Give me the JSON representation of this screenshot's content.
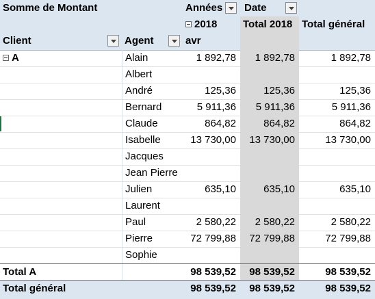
{
  "header": {
    "measure": "Somme de Montant",
    "columns_field": "Années",
    "date_field": "Date",
    "year": "2018",
    "year_total": "Total 2018",
    "grand_total": "Total général",
    "client_field": "Client",
    "agent_field": "Agent",
    "month": "avr"
  },
  "client_group": "A",
  "rows": [
    {
      "agent": "Alain",
      "avr": "1 892,78",
      "total2018": "1 892,78",
      "total": "1 892,78"
    },
    {
      "agent": "Albert",
      "avr": "",
      "total2018": "",
      "total": ""
    },
    {
      "agent": "André",
      "avr": "125,36",
      "total2018": "125,36",
      "total": "125,36"
    },
    {
      "agent": "Bernard",
      "avr": "5 911,36",
      "total2018": "5 911,36",
      "total": "5 911,36"
    },
    {
      "agent": "Claude",
      "avr": "864,82",
      "total2018": "864,82",
      "total": "864,82"
    },
    {
      "agent": "Isabelle",
      "avr": "13 730,00",
      "total2018": "13 730,00",
      "total": "13 730,00"
    },
    {
      "agent": "Jacques",
      "avr": "",
      "total2018": "",
      "total": ""
    },
    {
      "agent": "Jean Pierre",
      "avr": "",
      "total2018": "",
      "total": ""
    },
    {
      "agent": "Julien",
      "avr": "635,10",
      "total2018": "635,10",
      "total": "635,10"
    },
    {
      "agent": "Laurent",
      "avr": "",
      "total2018": "",
      "total": ""
    },
    {
      "agent": "Paul",
      "avr": "2 580,22",
      "total2018": "2 580,22",
      "total": "2 580,22"
    },
    {
      "agent": "Pierre",
      "avr": "72 799,88",
      "total2018": "72 799,88",
      "total": "72 799,88"
    },
    {
      "agent": "Sophie",
      "avr": "",
      "total2018": "",
      "total": ""
    }
  ],
  "subtotal": {
    "label": "Total A",
    "avr": "98 539,52",
    "total2018": "98 539,52",
    "total": "98 539,52"
  },
  "grandtotal": {
    "label": "Total général",
    "avr": "98 539,52",
    "total2018": "98 539,52",
    "total": "98 539,52"
  },
  "colors": {
    "header_bg": "#dce6f1",
    "total_col_bg": "#d9d9d9",
    "grid": "#d9e1ec",
    "separator": "#4472c4"
  }
}
